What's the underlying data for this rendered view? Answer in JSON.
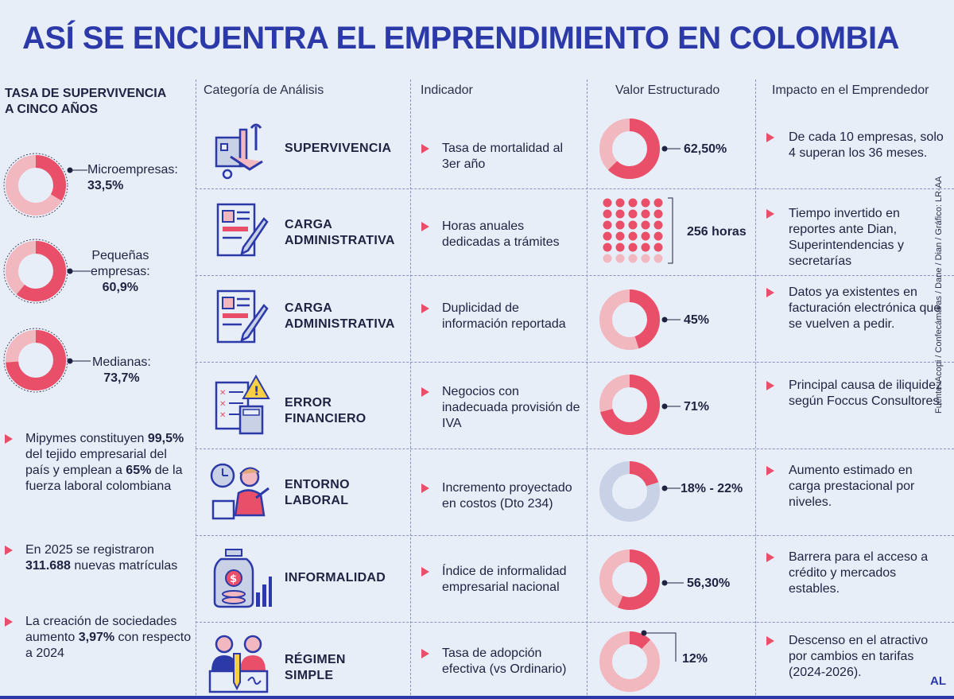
{
  "title": "ASÍ SE ENCUENTRA EL EMPRENDIMIENTO EN COLOMBIA",
  "left": {
    "heading_line1": "TASA DE SUPERVIVENCIA",
    "heading_line2": "A CINCO AÑOS",
    "donuts": [
      {
        "label": "Microempresas:",
        "value": "33,5%",
        "fraction": 0.335
      },
      {
        "label_line1": "Pequeñas",
        "label_line2": "empresas:",
        "value": "60,9%",
        "fraction": 0.609
      },
      {
        "label": "Medianas:",
        "value": "73,7%",
        "fraction": 0.737
      }
    ],
    "bullets": [
      {
        "p1": "Mipymes constituyen",
        "b1": "99,5%",
        "p2": " del tejido empresarial del país y emplean a ",
        "b2": "65%",
        "p3": " de la fuerza laboral colombiana"
      },
      {
        "p1": "En 2025 se registraron",
        "b1": "311.688",
        "p2": " nuevas matrículas"
      },
      {
        "p1": "La creación de sociedades aumento ",
        "b1": "3,97%",
        "p2": " con respecto a 2024"
      }
    ]
  },
  "headers": {
    "categoria": "Categoría de Análisis",
    "indicador": "Indicador",
    "valor": "Valor Estructurado",
    "impacto": "Impacto en el Emprendedor"
  },
  "rows": [
    {
      "icon": "factory-tools-icon",
      "cat1": "SUPERVIVENCIA",
      "cat2": "",
      "ind": "Tasa de mortalidad al 3er año",
      "value": "62,50%",
      "fraction": 0.625,
      "impact": "De cada 10 empresas, solo 4 superan los 36 meses."
    },
    {
      "icon": "document-sign-icon",
      "cat1": "CARGA",
      "cat2": "ADMINISTRATIVA",
      "ind": "Horas anuales dedicadas a trámites",
      "value": "256 horas",
      "impact": "Tiempo invertido en reportes ante Dian, Superintendencias y secretarías"
    },
    {
      "icon": "document-sign-icon",
      "cat1": "CARGA",
      "cat2": "ADMINISTRATIVA",
      "ind": "Duplicidad de información reportada",
      "value": "45%",
      "fraction": 0.45,
      "impact": "Datos ya existentes en facturación electrónica que se vuelven a pedir."
    },
    {
      "icon": "checklist-warning-icon",
      "cat1": "ERROR",
      "cat2": "FINANCIERO",
      "ind": "Negocios con inadecuada provisión de IVA",
      "value": "71%",
      "fraction": 0.71,
      "impact": "Principal causa de iliquidez según Foccus Consultores."
    },
    {
      "icon": "worker-clock-icon",
      "cat1": "ENTORNO",
      "cat2": "LABORAL",
      "ind": "Incremento proyectado en costos (Dto 234)",
      "value": "18% - 22%",
      "fraction": 0.2,
      "impact": "Aumento estimado en carga prestacional por niveles."
    },
    {
      "icon": "money-jar-icon",
      "cat1": "INFORMALIDAD",
      "cat2": "",
      "ind": "Índice de informalidad empresarial nacional",
      "value": "56,30%",
      "fraction": 0.563,
      "impact": "Barrera para el acceso a crédito y mercados estables."
    },
    {
      "icon": "people-pencil-icon",
      "cat1": "RÉGIMEN",
      "cat2": "SIMPLE",
      "ind": "Tasa de adopción efectiva (vs Ordinario)",
      "value": "12%",
      "fraction": 0.12,
      "impact": "Descenso en el atractivo por cambios en tarifas (2024-2026)."
    }
  ],
  "source": "Fuente: Acopi / Confecámaras / Dane / Dian / Gráfico: LR-AA",
  "logo": "AL",
  "colors": {
    "accent": "#e94f69",
    "light": "#f2b8c0",
    "blue": "#2b3aa8",
    "grey": "#c9d1e6"
  }
}
